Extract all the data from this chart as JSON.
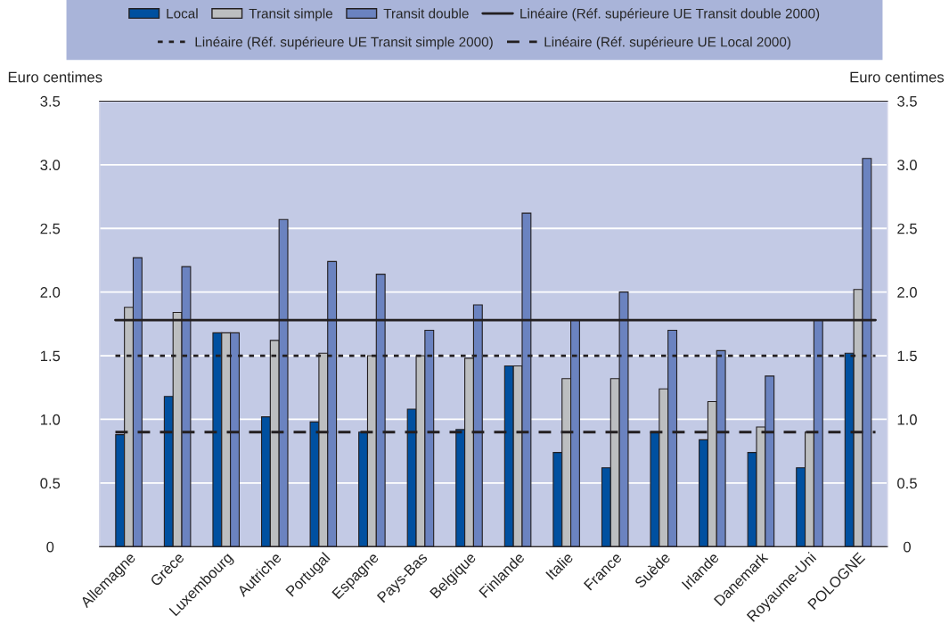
{
  "chart_data": {
    "type": "bar",
    "categories": [
      "Allemagne",
      "Grèce",
      "Luxembourg",
      "Autriche",
      "Portugal",
      "Espagne",
      "Pays-Bas",
      "Belgique",
      "Finlande",
      "Italie",
      "France",
      "Suède",
      "Irlande",
      "Danemark",
      "Royaume-Uni",
      "POLOGNE"
    ],
    "series": [
      {
        "name": "Local",
        "color": "#0050a0",
        "values": [
          0.88,
          1.18,
          1.68,
          1.02,
          0.98,
          0.9,
          1.08,
          0.92,
          1.42,
          0.74,
          0.62,
          0.9,
          0.84,
          0.74,
          0.62,
          1.52
        ]
      },
      {
        "name": "Transit simple",
        "color": "#bcbec0",
        "values": [
          1.88,
          1.84,
          1.68,
          1.62,
          1.52,
          1.5,
          1.5,
          1.48,
          1.42,
          1.32,
          1.32,
          1.24,
          1.14,
          0.94,
          0.9,
          2.02
        ]
      },
      {
        "name": "Transit double",
        "color": "#6b83c0",
        "values": [
          2.27,
          2.2,
          1.68,
          2.57,
          2.24,
          2.14,
          1.7,
          1.9,
          2.62,
          1.78,
          2.0,
          1.7,
          1.54,
          1.34,
          1.78,
          3.05
        ]
      }
    ],
    "ref_lines": [
      {
        "axis": "y",
        "value": 1.78,
        "label": "Linéaire (Réf. supérieure UE Transit double 2000)",
        "color": "#231f20",
        "line_style": "solid"
      },
      {
        "axis": "y",
        "value": 1.5,
        "label": "Linéaire (Réf. supérieure UE Transit simple 2000)",
        "color": "#231f20",
        "line_style": "dotted"
      },
      {
        "axis": "y",
        "value": 0.9,
        "label": "Linéaire (Réf. supérieure UE Local 2000)",
        "color": "#231f20",
        "line_style": "dashed"
      }
    ],
    "ylabel": "Euro centimes",
    "y2label": "Euro centimes",
    "ylim": [
      0,
      3.5
    ],
    "yticks": [
      0,
      0.5,
      {
        "value": 1.0,
        "label": "1.0"
      },
      1.5,
      {
        "value": 2.0,
        "label": "2.0"
      },
      2.5,
      {
        "value": 3.0,
        "label": "3.0"
      },
      3.5
    ],
    "y2lim": [
      0,
      3.5
    ],
    "y2ticks": [
      0,
      0.5,
      {
        "value": 1.0,
        "label": "1.0"
      },
      1.5,
      {
        "value": 2.0,
        "label": "2.0"
      },
      2.5,
      {
        "value": 3.0,
        "label": "3.0"
      },
      3.5
    ],
    "grid": "y",
    "legend": "top"
  }
}
